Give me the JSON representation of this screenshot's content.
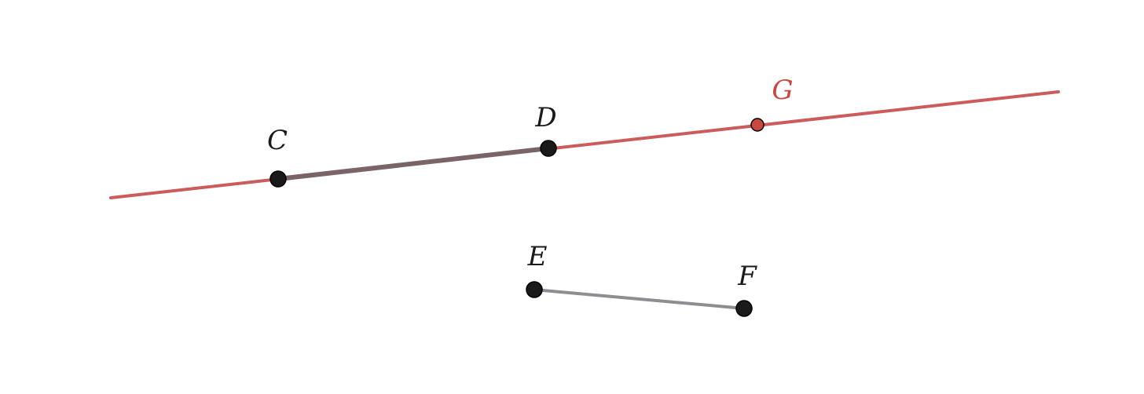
{
  "figure": {
    "line_color": "#cc5c5c",
    "segment_color": "#7a6468",
    "segment_ef_color": "#8e8e92",
    "point_color": "#1a1a1a",
    "special_point_color": "#c9473f",
    "label_color": "#1a1a1a",
    "special_label_color": "#c9473f"
  },
  "points": {
    "C": {
      "label": "C"
    },
    "D": {
      "label": "D"
    },
    "E": {
      "label": "E"
    },
    "F": {
      "label": "F"
    },
    "G": {
      "label": "G"
    }
  }
}
